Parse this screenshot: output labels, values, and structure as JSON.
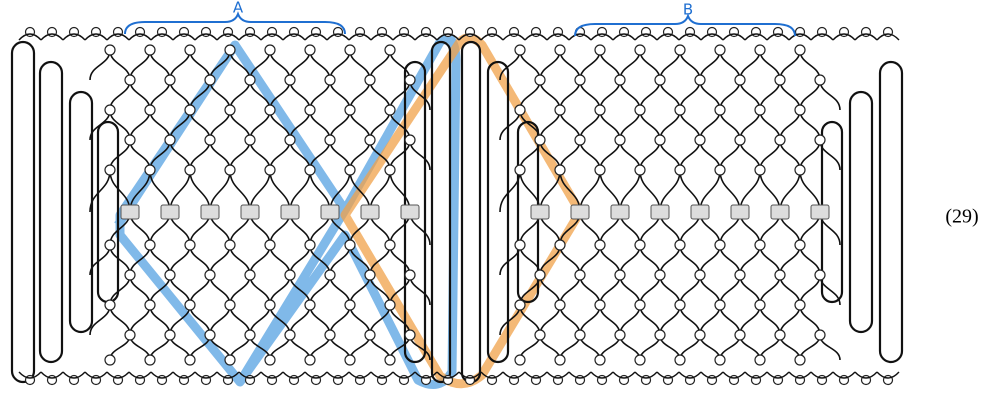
{
  "labels": {
    "a": "A",
    "b": "B"
  },
  "equation_number": "(29)"
}
